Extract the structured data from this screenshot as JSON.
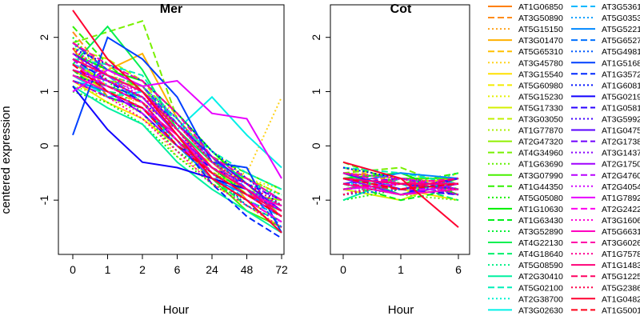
{
  "chart_data": {
    "type": "line",
    "ylabel": "centered expression",
    "panels": [
      {
        "title": "Mer",
        "xlabel": "Hour",
        "categories": [
          "0",
          "1",
          "2",
          "6",
          "24",
          "48",
          "72"
        ],
        "ylim": [
          -2.0,
          2.6
        ],
        "yticks": [
          -1,
          0,
          1,
          2
        ]
      },
      {
        "title": "Cot",
        "xlabel": "Hour",
        "categories": [
          "0",
          "1",
          "6"
        ],
        "ylim": [
          -2.0,
          2.6
        ],
        "yticks": [
          -1,
          0,
          1,
          2
        ]
      }
    ],
    "series": [
      {
        "name": "AT1G06850",
        "color": "#ff7f00",
        "dash": "solid",
        "mer": [
          1.8,
          0.9,
          0.7,
          0.1,
          -0.5,
          -0.9,
          -1.3
        ],
        "cot": [
          -0.5,
          -0.6,
          -0.7
        ]
      },
      {
        "name": "AT3G50890",
        "color": "#ff8c1a",
        "dash": "dashed",
        "mer": [
          2.1,
          1.3,
          1.1,
          0.4,
          -0.3,
          -0.7,
          -1.2
        ],
        "cot": [
          -0.4,
          -0.7,
          -0.8
        ]
      },
      {
        "name": "AT5G15150",
        "color": "#ffa31a",
        "dash": "dotted",
        "mer": [
          1.5,
          1.2,
          0.9,
          0.2,
          -0.4,
          -0.8,
          -1.1
        ],
        "cot": [
          -0.6,
          -0.5,
          -0.9
        ]
      },
      {
        "name": "AT3G01470",
        "color": "#ffb000",
        "dash": "solid",
        "mer": [
          1.9,
          1.4,
          1.7,
          0.5,
          -0.2,
          -1.0,
          -1.4
        ],
        "cot": [
          -0.8,
          -0.7,
          -0.6
        ]
      },
      {
        "name": "AT5G65310",
        "color": "#ffc000",
        "dash": "dashed",
        "mer": [
          1.3,
          1.0,
          0.8,
          0.3,
          -0.5,
          -0.6,
          -0.9
        ],
        "cot": [
          -0.7,
          -0.8,
          -0.7
        ]
      },
      {
        "name": "AT3G45780",
        "color": "#ffd21a",
        "dash": "dotted",
        "mer": [
          1.7,
          1.5,
          0.6,
          -0.2,
          -0.6,
          -0.5,
          0.9
        ],
        "cot": [
          -0.9,
          -0.6,
          -0.8
        ]
      },
      {
        "name": "AT3G15540",
        "color": "#ffe000",
        "dash": "solid",
        "mer": [
          1.2,
          0.8,
          0.5,
          0.0,
          -0.3,
          -0.9,
          -1.0
        ],
        "cot": [
          -0.5,
          -0.8,
          -1.0
        ]
      },
      {
        "name": "AT5G60980",
        "color": "#f2ec00",
        "dash": "dashed",
        "mer": [
          1.6,
          1.1,
          0.9,
          0.2,
          -0.7,
          -1.1,
          -1.5
        ],
        "cot": [
          -0.6,
          -0.9,
          -0.5
        ]
      },
      {
        "name": "AT5G15230",
        "color": "#e5f000",
        "dash": "dotted",
        "mer": [
          2.0,
          1.3,
          1.0,
          0.6,
          -0.1,
          -0.6,
          -0.8
        ],
        "cot": [
          -0.7,
          -0.5,
          -0.7
        ]
      },
      {
        "name": "AT5G17330",
        "color": "#d4f000",
        "dash": "solid",
        "mer": [
          1.4,
          1.0,
          0.7,
          0.1,
          -0.5,
          -0.8,
          -1.2
        ],
        "cot": [
          -0.8,
          -1.0,
          -0.6
        ]
      },
      {
        "name": "AT3G03050",
        "color": "#c0f000",
        "dash": "dashed",
        "mer": [
          1.8,
          1.6,
          1.2,
          0.4,
          -0.2,
          -0.7,
          -1.3
        ],
        "cot": [
          -0.4,
          -0.6,
          -0.9
        ]
      },
      {
        "name": "AT1G77870",
        "color": "#a8f000",
        "dash": "dotted",
        "mer": [
          1.1,
          0.9,
          0.6,
          -0.1,
          -0.6,
          -1.0,
          -1.4
        ],
        "cot": [
          -0.9,
          -0.7,
          -0.8
        ]
      },
      {
        "name": "AT2G47320",
        "color": "#90f000",
        "dash": "solid",
        "mer": [
          1.5,
          1.2,
          1.1,
          0.3,
          -0.4,
          -0.9,
          -1.0
        ],
        "cot": [
          -0.6,
          -0.8,
          -0.7
        ]
      },
      {
        "name": "AT4G34960",
        "color": "#78f000",
        "dash": "dashed",
        "mer": [
          1.9,
          2.1,
          2.3,
          0.5,
          -0.3,
          -0.8,
          -1.1
        ],
        "cot": [
          -0.5,
          -0.4,
          -0.8
        ]
      },
      {
        "name": "AT1G63690",
        "color": "#60f000",
        "dash": "dotted",
        "mer": [
          1.6,
          1.3,
          0.8,
          0.0,
          -0.5,
          -0.6,
          -0.9
        ],
        "cot": [
          -0.7,
          -0.9,
          -1.0
        ]
      },
      {
        "name": "AT3G07990",
        "color": "#48f000",
        "dash": "solid",
        "mer": [
          1.3,
          1.1,
          0.9,
          0.2,
          -0.6,
          -1.2,
          -1.5
        ],
        "cot": [
          -0.8,
          -0.6,
          -0.6
        ]
      },
      {
        "name": "AT1G44350",
        "color": "#30f000",
        "dash": "dashed",
        "mer": [
          2.2,
          1.5,
          1.0,
          0.4,
          -0.2,
          -0.5,
          -0.8
        ],
        "cot": [
          -0.3,
          -0.7,
          -0.5
        ]
      },
      {
        "name": "AT5G05080",
        "color": "#18f000",
        "dash": "dotted",
        "mer": [
          1.0,
          0.8,
          0.4,
          -0.2,
          -0.7,
          -1.0,
          -1.3
        ],
        "cot": [
          -1.0,
          -0.8,
          -0.7
        ]
      },
      {
        "name": "AT1G10630",
        "color": "#00f000",
        "dash": "solid",
        "mer": [
          1.7,
          1.4,
          1.2,
          0.6,
          -0.1,
          -0.7,
          -1.2
        ],
        "cot": [
          -0.6,
          -0.5,
          -0.9
        ]
      },
      {
        "name": "AT1G63430",
        "color": "#00f01a",
        "dash": "dashed",
        "mer": [
          1.4,
          0.9,
          0.7,
          0.1,
          -0.4,
          -0.9,
          -1.1
        ],
        "cot": [
          -0.7,
          -1.0,
          -0.8
        ]
      },
      {
        "name": "AT3G52890",
        "color": "#00f035",
        "dash": "dotted",
        "mer": [
          2.0,
          1.2,
          0.6,
          -0.1,
          -0.5,
          -0.8,
          -1.2
        ],
        "cot": [
          -0.9,
          -0.6,
          -0.7
        ]
      },
      {
        "name": "AT4G22130",
        "color": "#00f050",
        "dash": "solid",
        "mer": [
          1.5,
          2.2,
          1.4,
          0.3,
          -0.3,
          -0.6,
          -1.0
        ],
        "cot": [
          -0.5,
          -0.9,
          -0.6
        ]
      },
      {
        "name": "AT4G18640",
        "color": "#00f06a",
        "dash": "dashed",
        "mer": [
          1.2,
          1.0,
          0.9,
          0.2,
          -0.6,
          -1.1,
          -1.4
        ],
        "cot": [
          -0.8,
          -0.7,
          -1.0
        ]
      },
      {
        "name": "AT5G08590",
        "color": "#00f085",
        "dash": "dotted",
        "mer": [
          1.8,
          1.3,
          1.1,
          0.5,
          -0.2,
          -0.7,
          -0.9
        ],
        "cot": [
          -0.6,
          -0.8,
          -0.5
        ]
      },
      {
        "name": "AT2G30410",
        "color": "#00f0a0",
        "dash": "solid",
        "mer": [
          1.1,
          0.7,
          0.4,
          -0.3,
          -0.8,
          -1.2,
          -1.6
        ],
        "cot": [
          -1.0,
          -0.6,
          -0.8
        ]
      },
      {
        "name": "AT5G02100",
        "color": "#00f0b8",
        "dash": "dashed",
        "mer": [
          1.6,
          1.5,
          1.3,
          0.4,
          -0.1,
          -0.5,
          -0.8
        ],
        "cot": [
          -0.4,
          -0.5,
          -0.7
        ]
      },
      {
        "name": "AT2G38700",
        "color": "#00f0d0",
        "dash": "dotted",
        "mer": [
          1.9,
          1.1,
          0.8,
          0.0,
          -0.4,
          -0.8,
          -1.1
        ],
        "cot": [
          -0.7,
          -0.7,
          -0.9
        ]
      },
      {
        "name": "AT3G02630",
        "color": "#00f0e8",
        "dash": "solid",
        "mer": [
          1.3,
          0.9,
          1.0,
          0.3,
          0.9,
          0.2,
          -0.4
        ],
        "cot": [
          -0.5,
          -0.8,
          -0.6
        ]
      },
      {
        "name": "AT3G5361",
        "color": "#00b8ff",
        "dash": "dashed",
        "mer": [
          1.5,
          1.3,
          0.8,
          0.1,
          -0.5,
          -1.0,
          -1.3
        ],
        "cot": [
          -0.6,
          -0.9,
          -0.7
        ]
      },
      {
        "name": "AT5G0353",
        "color": "#00a0ff",
        "dash": "dotted",
        "mer": [
          1.7,
          1.2,
          1.0,
          0.5,
          -0.3,
          -0.6,
          -1.0
        ],
        "cot": [
          -0.8,
          -0.6,
          -0.8
        ]
      },
      {
        "name": "AT5G5221",
        "color": "#0088ff",
        "dash": "solid",
        "mer": [
          1.2,
          1.0,
          0.7,
          0.0,
          -0.6,
          -0.9,
          -1.2
        ],
        "cot": [
          -0.7,
          -0.5,
          -0.6
        ]
      },
      {
        "name": "AT5G6527",
        "color": "#0070ff",
        "dash": "dashed",
        "mer": [
          1.9,
          1.4,
          1.1,
          0.4,
          -0.2,
          -0.8,
          -1.5
        ],
        "cot": [
          -0.5,
          -0.7,
          -0.9
        ]
      },
      {
        "name": "AT5G4981",
        "color": "#0058ff",
        "dash": "dotted",
        "mer": [
          1.4,
          1.1,
          0.9,
          0.2,
          -0.5,
          -1.1,
          -1.4
        ],
        "cot": [
          -0.9,
          -0.8,
          -0.7
        ]
      },
      {
        "name": "AT1G5168",
        "color": "#0040ff",
        "dash": "solid",
        "mer": [
          0.2,
          2.0,
          1.6,
          0.9,
          -0.3,
          -0.4,
          -1.6
        ],
        "cot": [
          -0.6,
          -0.7,
          -0.8
        ]
      },
      {
        "name": "AT1G3572",
        "color": "#0028ff",
        "dash": "dashed",
        "mer": [
          1.6,
          1.2,
          0.8,
          0.1,
          -0.7,
          -1.3,
          -1.7
        ],
        "cot": [
          -0.7,
          -0.9,
          -0.6
        ]
      },
      {
        "name": "AT1G6081",
        "color": "#0010ff",
        "dash": "dotted",
        "mer": [
          1.8,
          1.5,
          1.2,
          0.6,
          -0.1,
          -0.6,
          -1.1
        ],
        "cot": [
          -0.4,
          -0.6,
          -0.8
        ]
      },
      {
        "name": "AT5G0219",
        "color": "#1000ff",
        "dash": "solid",
        "mer": [
          1.1,
          0.3,
          -0.3,
          -0.4,
          -0.6,
          -0.8,
          -1.2
        ],
        "cot": [
          -0.8,
          -0.7,
          -0.7
        ]
      },
      {
        "name": "AT1G0581",
        "color": "#2800ff",
        "dash": "dashed",
        "mer": [
          1.5,
          1.0,
          0.6,
          0.0,
          -0.4,
          -0.7,
          -1.0
        ],
        "cot": [
          -0.6,
          -0.8,
          -0.9
        ]
      },
      {
        "name": "AT3G5992",
        "color": "#4000ff",
        "dash": "dotted",
        "mer": [
          1.3,
          1.1,
          0.8,
          0.3,
          -0.5,
          -0.9,
          -1.3
        ],
        "cot": [
          -0.9,
          -0.6,
          -0.7
        ]
      },
      {
        "name": "AT1G0475",
        "color": "#5800ff",
        "dash": "solid",
        "mer": [
          1.7,
          1.3,
          1.0,
          0.4,
          -0.2,
          -0.7,
          -1.2
        ],
        "cot": [
          -0.5,
          -0.8,
          -0.6
        ]
      },
      {
        "name": "AT2G1738",
        "color": "#7000ff",
        "dash": "dashed",
        "mer": [
          1.2,
          0.9,
          0.7,
          0.1,
          -0.6,
          -1.0,
          -1.4
        ],
        "cot": [
          -0.7,
          -0.6,
          -0.8
        ]
      },
      {
        "name": "AT3G1437",
        "color": "#8800ff",
        "dash": "dotted",
        "mer": [
          1.9,
          1.4,
          1.1,
          0.5,
          -0.3,
          -0.8,
          -1.1
        ],
        "cot": [
          -0.8,
          -0.7,
          -0.9
        ]
      },
      {
        "name": "AT2G1750",
        "color": "#a000ff",
        "dash": "solid",
        "mer": [
          1.4,
          1.2,
          0.9,
          0.2,
          -0.4,
          -0.8,
          -1.2
        ],
        "cot": [
          -0.6,
          -0.9,
          -0.7
        ]
      },
      {
        "name": "AT2G4760",
        "color": "#b800ff",
        "dash": "dashed",
        "mer": [
          1.6,
          1.0,
          0.6,
          0.0,
          -0.5,
          -0.9,
          -1.3
        ],
        "cot": [
          -0.7,
          -0.8,
          -0.6
        ]
      },
      {
        "name": "AT2G4054",
        "color": "#d000ff",
        "dash": "dotted",
        "mer": [
          1.8,
          1.3,
          0.9,
          0.3,
          -0.4,
          -0.7,
          -1.0
        ],
        "cot": [
          -0.5,
          -0.6,
          -0.8
        ]
      },
      {
        "name": "AT1G7892",
        "color": "#e800ff",
        "dash": "solid",
        "mer": [
          1.0,
          1.4,
          1.1,
          1.2,
          0.6,
          0.5,
          -0.6
        ],
        "cot": [
          -0.8,
          -0.7,
          -0.7
        ]
      },
      {
        "name": "AT2G2422",
        "color": "#ff00f0",
        "dash": "dashed",
        "mer": [
          1.5,
          1.1,
          0.8,
          0.1,
          -0.6,
          -1.0,
          -1.4
        ],
        "cot": [
          -0.6,
          -0.8,
          -0.8
        ]
      },
      {
        "name": "AT3G1606",
        "color": "#ff00d8",
        "dash": "dotted",
        "mer": [
          1.7,
          1.2,
          1.0,
          0.4,
          -0.3,
          -0.8,
          -1.2
        ],
        "cot": [
          -0.9,
          -0.6,
          -0.7
        ]
      },
      {
        "name": "AT5G6631",
        "color": "#ff00c0",
        "dash": "solid",
        "mer": [
          1.3,
          1.0,
          0.7,
          0.2,
          -0.5,
          -0.9,
          -1.1
        ],
        "cot": [
          -0.7,
          -0.9,
          -0.8
        ]
      },
      {
        "name": "AT3G6026",
        "color": "#ff00a8",
        "dash": "dashed",
        "mer": [
          1.9,
          1.5,
          1.2,
          0.6,
          -0.2,
          -0.6,
          -1.0
        ],
        "cot": [
          -0.5,
          -0.7,
          -0.6
        ]
      },
      {
        "name": "AT1G7578",
        "color": "#ff0090",
        "dash": "dotted",
        "mer": [
          1.2,
          0.9,
          0.5,
          -0.1,
          -0.7,
          -1.1,
          -1.5
        ],
        "cot": [
          -0.8,
          -0.6,
          -0.9
        ]
      },
      {
        "name": "AT1G1483",
        "color": "#ff0078",
        "dash": "solid",
        "mer": [
          1.6,
          1.3,
          1.0,
          0.3,
          -0.4,
          -0.8,
          -1.3
        ],
        "cot": [
          -0.6,
          -0.7,
          -0.7
        ]
      },
      {
        "name": "AT5G1225",
        "color": "#ff0060",
        "dash": "dashed",
        "mer": [
          1.4,
          1.1,
          0.8,
          0.1,
          -0.5,
          -0.9,
          -1.2
        ],
        "cot": [
          -0.7,
          -0.8,
          -0.6
        ]
      },
      {
        "name": "AT5G2386",
        "color": "#ff0048",
        "dash": "dotted",
        "mer": [
          1.8,
          1.2,
          0.9,
          0.4,
          -0.3,
          -0.7,
          -1.1
        ],
        "cot": [
          -0.9,
          -0.7,
          -0.8
        ]
      },
      {
        "name": "AT1G0482",
        "color": "#ff0030",
        "dash": "solid",
        "mer": [
          2.5,
          1.6,
          1.0,
          0.2,
          -0.6,
          -1.0,
          -1.6
        ],
        "cot": [
          -0.3,
          -0.6,
          -1.5
        ]
      },
      {
        "name": "AT1G5001",
        "color": "#ff0018",
        "dash": "dashed",
        "mer": [
          1.5,
          1.0,
          0.7,
          0.0,
          -0.5,
          -0.9,
          -1.3
        ],
        "cot": [
          -0.6,
          -0.8,
          -0.7
        ]
      }
    ]
  }
}
